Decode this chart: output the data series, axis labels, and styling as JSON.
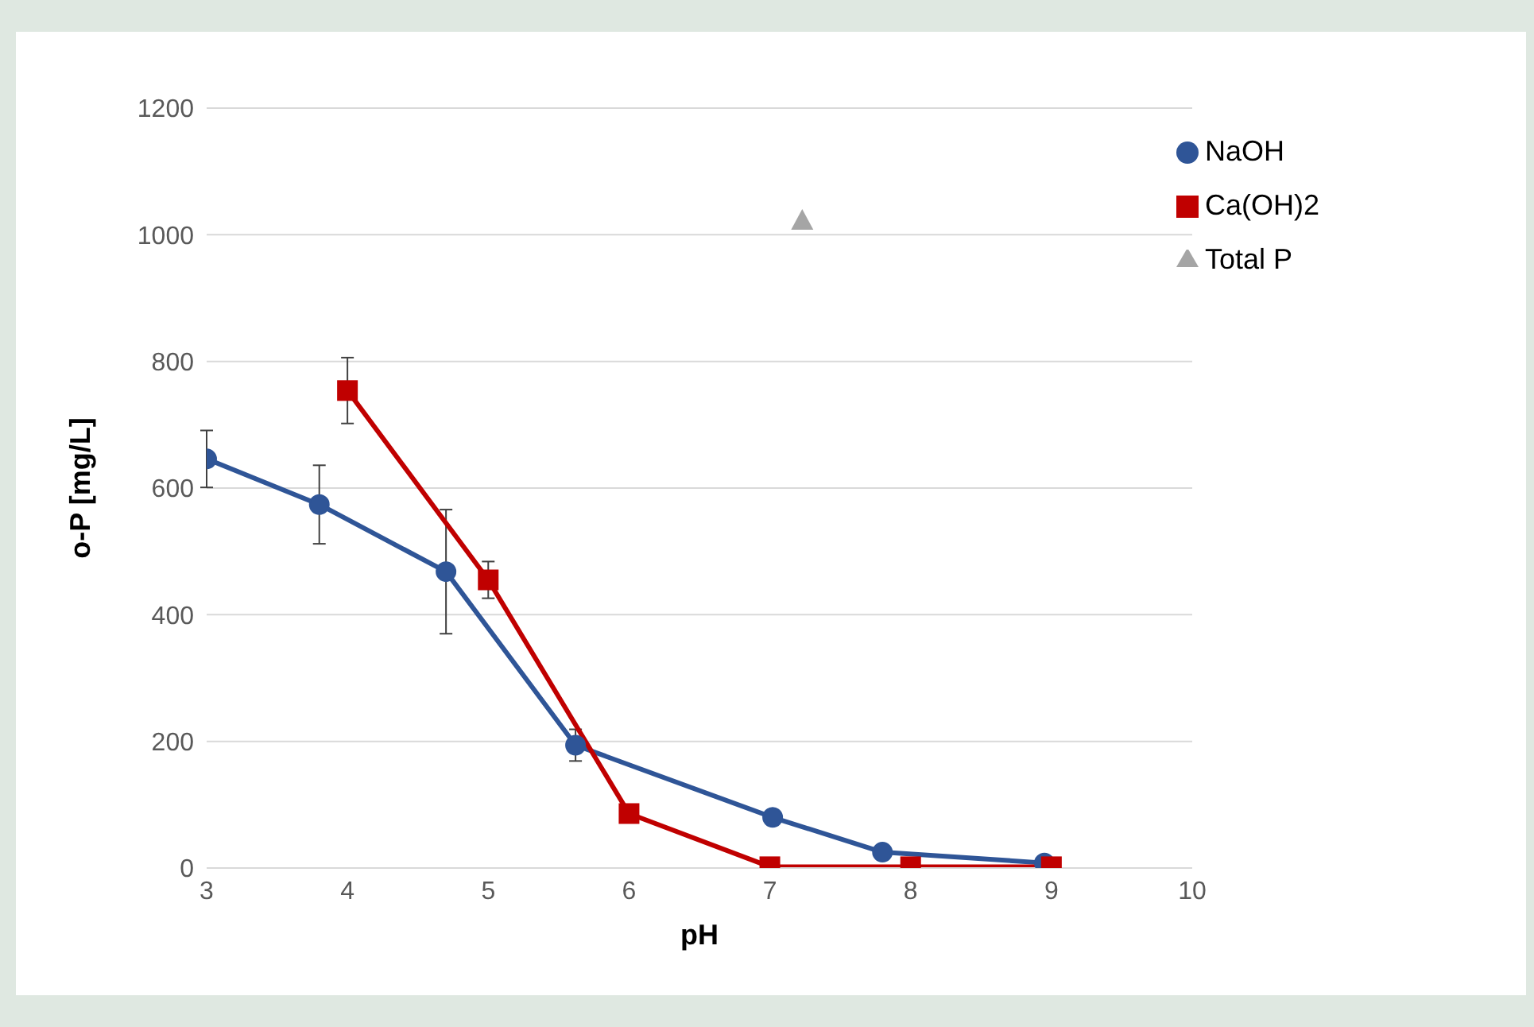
{
  "chart_data": {
    "type": "line",
    "xlabel": "pH",
    "ylabel": "o-P [mg/L]",
    "xlim": [
      3,
      10
    ],
    "xticks": [
      3,
      4,
      5,
      6,
      7,
      8,
      9,
      10
    ],
    "ylim": [
      0,
      1200
    ],
    "yticks": [
      0,
      200,
      400,
      600,
      800,
      1000,
      1200
    ],
    "grid": "y",
    "legend": "top right",
    "series": [
      {
        "name": "NaOH",
        "color": "#2f5597",
        "marker": "circle",
        "x": [
          3,
          3.8,
          4.7,
          5.62,
          7.02,
          7.8,
          8.95
        ],
        "values": [
          646,
          574,
          468,
          194,
          80,
          25,
          8
        ],
        "errors": [
          45,
          62,
          98,
          25,
          null,
          null,
          null
        ]
      },
      {
        "name": "Ca(OH)2",
        "color": "#c00000",
        "marker": "square",
        "x": [
          4,
          5,
          6,
          7,
          8,
          9
        ],
        "values": [
          754,
          455,
          86,
          2,
          2,
          2
        ],
        "errors": [
          52,
          29,
          null,
          null,
          null,
          null
        ]
      },
      {
        "name": "Total P",
        "color": "#a5a5a5",
        "marker": "triangle",
        "x": [
          7.23
        ],
        "values": [
          1023
        ]
      }
    ]
  }
}
